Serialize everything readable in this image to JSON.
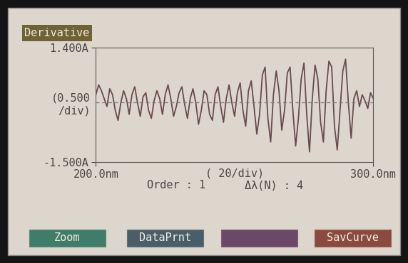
{
  "chart_data": {
    "type": "line",
    "title": "Derivative",
    "y_scale_label": "(0.500\n/div)",
    "x_scale_label": "( 20/div)",
    "order_label": "Order : 1",
    "delta_label": "Δλ(N) : 4",
    "buttons": [
      {
        "label": "Zoom",
        "color": "#3f7d6a"
      },
      {
        "label": "DataPrnt",
        "color": "#4a5e6a"
      },
      {
        "color": "#6a4868"
      },
      {
        "label": "SavCurve",
        "color": "#8a4a40"
      }
    ],
    "baseline": 0,
    "xlim": [
      200,
      300
    ],
    "ylim": [
      -1.5,
      1.4
    ],
    "xticks": [
      {
        "value": 200,
        "label": "200.0nm"
      },
      {
        "value": 300,
        "label": "300.0nm"
      }
    ],
    "yticks": [
      {
        "value": 1.4,
        "label": "1.400A"
      },
      {
        "value": -1.5,
        "label": "-1.500A"
      }
    ],
    "grid": false,
    "x": [
      200,
      201,
      202,
      203,
      204,
      205,
      206,
      207,
      208,
      209,
      210,
      211,
      212,
      213,
      214,
      215,
      216,
      217,
      218,
      219,
      220,
      221,
      222,
      223,
      224,
      225,
      226,
      227,
      228,
      229,
      230,
      231,
      232,
      233,
      234,
      235,
      236,
      237,
      238,
      239,
      240,
      241,
      242,
      243,
      244,
      245,
      246,
      247,
      248,
      249,
      250,
      251,
      252,
      253,
      254,
      255,
      256,
      257,
      258,
      259,
      260,
      261,
      262,
      263,
      264,
      265,
      266,
      267,
      268,
      269,
      270,
      271,
      272,
      273,
      274,
      275,
      276,
      277,
      278,
      279,
      280,
      281,
      282,
      283,
      284,
      285,
      286,
      287,
      288,
      289,
      290,
      291,
      292,
      293,
      294,
      295,
      296,
      297,
      298,
      299,
      300
    ],
    "series": [
      {
        "color": "#6a4a50",
        "line_style": "solid",
        "values": [
          0.2,
          0.45,
          0.3,
          0.1,
          -0.1,
          0.35,
          0.2,
          -0.2,
          -0.45,
          0.0,
          0.3,
          0.1,
          -0.3,
          0.2,
          0.4,
          0.0,
          -0.35,
          0.15,
          0.25,
          -0.2,
          -0.4,
          0.05,
          0.3,
          0.1,
          -0.3,
          0.2,
          0.45,
          0.1,
          -0.35,
          -0.1,
          0.25,
          0.4,
          -0.05,
          -0.4,
          0.1,
          0.35,
          0.0,
          -0.55,
          -0.2,
          0.3,
          0.2,
          -0.3,
          -0.45,
          0.2,
          0.4,
          -0.1,
          -0.5,
          0.1,
          0.45,
          0.0,
          -0.35,
          0.25,
          0.5,
          -0.2,
          -0.6,
          0.3,
          0.55,
          -0.1,
          -0.8,
          -0.3,
          0.7,
          0.9,
          -0.4,
          -1.0,
          0.2,
          0.8,
          0.3,
          -0.7,
          -0.2,
          0.75,
          0.9,
          -0.2,
          -1.1,
          -0.4,
          0.6,
          1.0,
          -0.3,
          -1.25,
          0.1,
          0.95,
          0.6,
          -0.5,
          -1.0,
          0.3,
          1.05,
          0.9,
          -0.6,
          -1.2,
          -0.2,
          0.8,
          1.1,
          0.0,
          -0.9,
          0.1,
          0.3,
          -0.1,
          0.2,
          0.05,
          -0.15,
          0.25,
          0.1
        ]
      }
    ]
  }
}
